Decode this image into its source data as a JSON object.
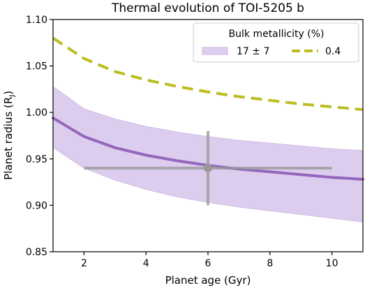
{
  "chart_data": {
    "type": "line",
    "title": "Thermal evolution of TOI-5205 b",
    "xlabel": "Planet age (Gyr)",
    "ylabel": "Planet radius (R",
    "ylabel_sub": "J",
    "ylabel_close": ")",
    "xlim": [
      1,
      11
    ],
    "ylim": [
      0.85,
      1.1
    ],
    "xticks": [
      2,
      4,
      6,
      8,
      10
    ],
    "yticks": [
      0.85,
      0.9,
      0.95,
      1.0,
      1.05,
      1.1
    ],
    "xtick_labels": [
      "2",
      "4",
      "6",
      "8",
      "10"
    ],
    "ytick_labels": [
      "0.85",
      "0.90",
      "0.95",
      "1.00",
      "1.05",
      "1.10"
    ],
    "grid": false,
    "legend": {
      "title": "Bulk metallicity (%)",
      "placement": "top-right",
      "entries": [
        "17 ± 7",
        "0.4"
      ]
    },
    "series": [
      {
        "name": "17 ± 7",
        "style": "solid-with-band",
        "color": "#9467bd",
        "band_color": "#dccdee",
        "x": [
          1,
          2,
          3,
          4,
          5,
          6,
          7,
          8,
          9,
          10,
          11
        ],
        "values": [
          0.994,
          0.974,
          0.962,
          0.954,
          0.948,
          0.943,
          0.939,
          0.936,
          0.933,
          0.93,
          0.928
        ],
        "lower": [
          0.962,
          0.94,
          0.927,
          0.917,
          0.909,
          0.903,
          0.898,
          0.894,
          0.89,
          0.886,
          0.882
        ],
        "upper": [
          1.028,
          1.004,
          0.993,
          0.985,
          0.979,
          0.974,
          0.97,
          0.967,
          0.964,
          0.961,
          0.959
        ]
      },
      {
        "name": "0.4",
        "style": "dashed",
        "color": "#bcbd22",
        "x": [
          1,
          2,
          3,
          4,
          5,
          6,
          7,
          8,
          9,
          10,
          11
        ],
        "values": [
          1.08,
          1.058,
          1.044,
          1.035,
          1.028,
          1.022,
          1.017,
          1.013,
          1.009,
          1.006,
          1.003
        ]
      }
    ],
    "measurement": {
      "x": 6,
      "y": 0.94,
      "xerr": [
        4,
        4
      ],
      "yerr": [
        0.04,
        0.04
      ],
      "color": "#999999"
    }
  }
}
